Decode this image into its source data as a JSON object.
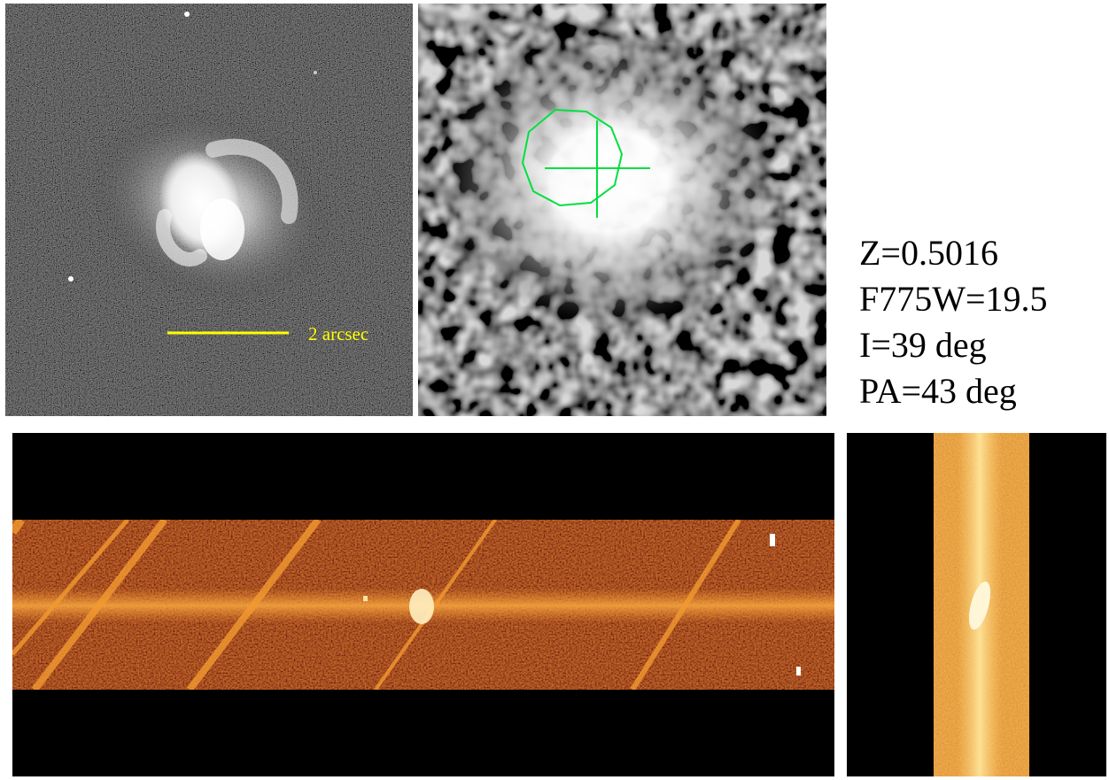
{
  "info": {
    "redshift": "Z=0.5016",
    "magnitude": "F775W=19.5",
    "inclination": "I=39 deg",
    "position_angle": "PA=43 deg"
  },
  "hst_image": {
    "scale_bar_label": "2 arcsec",
    "scale_bar_color": "#ffff00"
  },
  "smoothed_image": {
    "marker_color": "#00e040"
  },
  "spectrum_colors": {
    "background": "#000000",
    "low": "#5a1000",
    "mid": "#b04008",
    "high": "#f0a030",
    "peak": "#fff0c0"
  }
}
